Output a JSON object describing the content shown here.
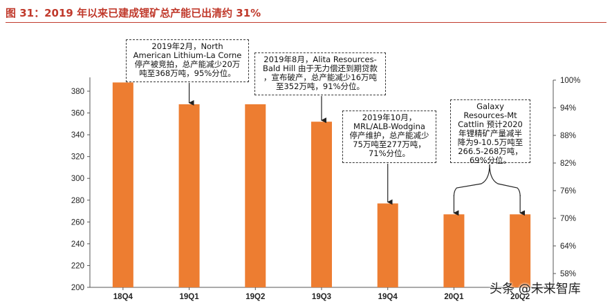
{
  "figure_title": "图 31：2019 年以来已建成锂矿总产能已出清约 31%",
  "chart_data": {
    "type": "bar",
    "categories": [
      "18Q4",
      "19Q1",
      "19Q2",
      "19Q3",
      "19Q4",
      "20Q1",
      "20Q2"
    ],
    "values": [
      388,
      368,
      368,
      352,
      277,
      267,
      267
    ],
    "bar_color": "#ed7d31",
    "ylim": [
      200,
      380
    ],
    "yticks": [
      200,
      220,
      240,
      260,
      280,
      300,
      320,
      340,
      360,
      380
    ],
    "y2lim": [
      55,
      100
    ],
    "y2ticks": [
      "58%",
      "64%",
      "70%",
      "76%",
      "82%",
      "88%",
      "94%",
      "100%"
    ],
    "y2tick_values": [
      58,
      64,
      70,
      76,
      82,
      88,
      94,
      100
    ],
    "grid": false
  },
  "annotations": [
    {
      "text": "2019年2月，North\nAmerican Lithium-La Corne\n停产被竞拍，总产能减少20万\n吨至368万吨，95%分位。",
      "target": "19Q1"
    },
    {
      "text": "2019年8月，Alita Resources-\nBald Hill 由于无力偿还到期贷款\n，宣布破产，总产能减少16万吨\n至352万吨，91%分位。",
      "target": "19Q3"
    },
    {
      "text": "2019年10月，\nMRL/ALB-Wodgina\n停产维护，总产能减少\n75万吨至277万吨，\n71%分位。",
      "target": "19Q4"
    },
    {
      "text": "Galaxy\nResources-Mt\nCattlin 预计2020\n年锂精矿产量减半\n降为9-10.5万吨至\n266.5-268万吨，\n69%分位。",
      "target": "20Q1,20Q2"
    }
  ],
  "watermark": "头条 @未来智库"
}
